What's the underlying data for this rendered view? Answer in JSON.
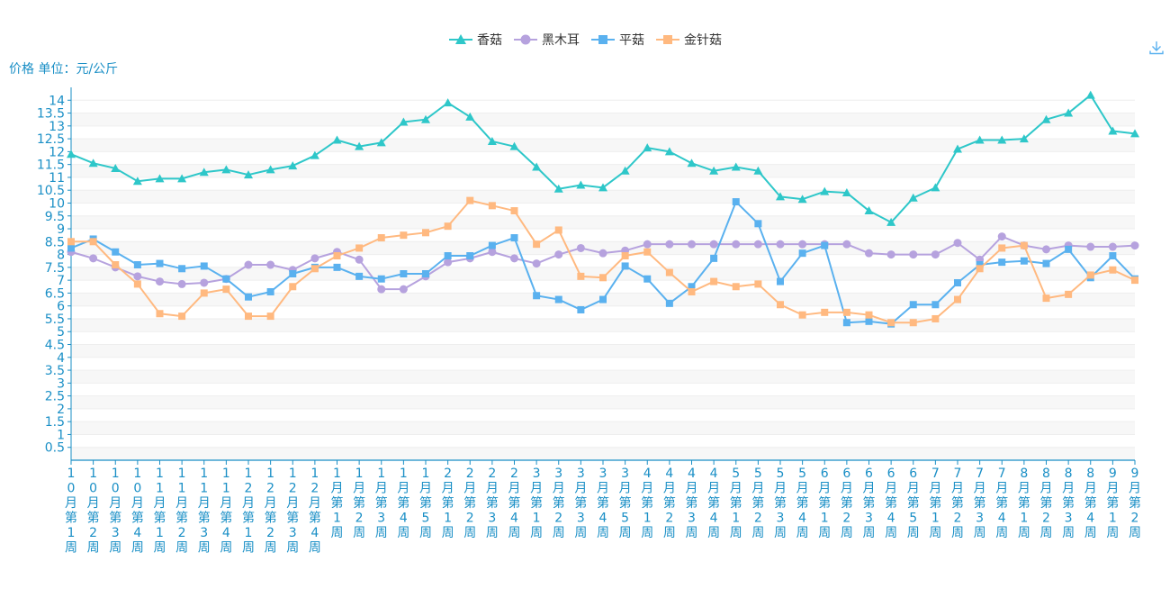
{
  "chart_data": {
    "type": "line",
    "ylabel": "价格 单位：元/公斤",
    "ylim": [
      0,
      14.5
    ],
    "yticks": [
      0.5,
      1,
      1.5,
      2,
      2.5,
      3,
      3.5,
      4,
      4.5,
      5,
      5.5,
      6,
      6.5,
      7,
      7.5,
      8,
      8.5,
      9,
      9.5,
      10,
      10.5,
      11,
      11.5,
      12,
      12.5,
      13,
      13.5,
      14
    ],
    "grid": true,
    "legend_position": "top-center",
    "categories": [
      "10月第1周",
      "10月第2周",
      "10月第3周",
      "10月第4周",
      "11月第1周",
      "11月第2周",
      "11月第3周",
      "11月第4周",
      "12月第1周",
      "12月第2周",
      "12月第3周",
      "12月第4周",
      "1月第1周",
      "1月第2周",
      "1月第3周",
      "1月第4周",
      "1月第5周",
      "2月第1周",
      "2月第2周",
      "2月第3周",
      "2月第4周",
      "3月第1周",
      "3月第2周",
      "3月第3周",
      "3月第4周",
      "3月第5周",
      "4月第1周",
      "4月第2周",
      "4月第3周",
      "4月第4周",
      "5月第1周",
      "5月第2周",
      "5月第3周",
      "5月第4周",
      "6月第1周",
      "6月第2周",
      "6月第3周",
      "6月第4周",
      "6月第5周",
      "7月第1周",
      "7月第2周",
      "7月第3周",
      "7月第4周",
      "8月第1周",
      "8月第2周",
      "8月第3周",
      "8月第4周",
      "9月第1周",
      "9月第2周"
    ],
    "series": [
      {
        "name": "香菇",
        "color": "#2ec7c9",
        "symbol": "triangle",
        "values": [
          11.9,
          11.55,
          11.35,
          10.85,
          10.95,
          10.95,
          11.2,
          11.3,
          11.1,
          11.3,
          11.45,
          11.85,
          12.45,
          12.2,
          12.35,
          13.15,
          13.25,
          13.9,
          13.35,
          12.4,
          12.2,
          11.4,
          10.55,
          10.7,
          10.6,
          11.25,
          12.15,
          12.0,
          11.55,
          11.25,
          11.4,
          11.25,
          10.25,
          10.15,
          10.45,
          10.4,
          9.7,
          9.25,
          10.2,
          10.6,
          12.1,
          12.45,
          12.45,
          12.5,
          13.25,
          13.5,
          14.2,
          12.8,
          12.7
        ]
      },
      {
        "name": "黑木耳",
        "color": "#b6a2de",
        "symbol": "circle",
        "values": [
          8.1,
          7.85,
          7.5,
          7.15,
          6.95,
          6.85,
          6.9,
          7.05,
          7.6,
          7.6,
          7.4,
          7.85,
          8.1,
          7.8,
          6.65,
          6.65,
          7.15,
          7.7,
          7.85,
          8.1,
          7.85,
          7.65,
          8.0,
          8.25,
          8.05,
          8.15,
          8.4,
          8.4,
          8.4,
          8.4,
          8.4,
          8.4,
          8.4,
          8.4,
          8.4,
          8.4,
          8.05,
          8.0,
          8.0,
          8.0,
          8.45,
          7.8,
          8.7,
          8.35,
          8.2,
          8.35,
          8.3,
          8.3,
          8.35
        ]
      },
      {
        "name": "平菇",
        "color": "#5ab1ef",
        "symbol": "rect",
        "values": [
          8.25,
          8.6,
          8.1,
          7.6,
          7.65,
          7.45,
          7.55,
          7.05,
          6.35,
          6.55,
          7.25,
          7.5,
          7.5,
          7.15,
          7.05,
          7.25,
          7.25,
          7.95,
          7.95,
          8.35,
          8.65,
          6.4,
          6.25,
          5.85,
          6.25,
          7.55,
          7.05,
          6.1,
          6.75,
          7.85,
          10.05,
          9.2,
          6.95,
          8.05,
          8.35,
          5.35,
          5.4,
          5.3,
          6.05,
          6.05,
          6.9,
          7.6,
          7.7,
          7.75,
          7.65,
          8.2,
          7.1,
          7.95,
          7.05
        ]
      },
      {
        "name": "金针菇",
        "color": "#ffb980",
        "symbol": "rect",
        "values": [
          8.5,
          8.5,
          7.6,
          6.85,
          5.7,
          5.6,
          6.5,
          6.65,
          5.6,
          5.6,
          6.75,
          7.45,
          7.95,
          8.25,
          8.65,
          8.75,
          8.85,
          9.1,
          10.1,
          9.9,
          9.7,
          8.4,
          8.95,
          7.15,
          7.1,
          7.95,
          8.1,
          7.3,
          6.55,
          6.95,
          6.75,
          6.85,
          6.05,
          5.65,
          5.75,
          5.75,
          5.65,
          5.35,
          5.35,
          5.5,
          6.25,
          7.45,
          8.25,
          8.35,
          6.3,
          6.45,
          7.2,
          7.4,
          7.0
        ]
      }
    ]
  },
  "toolbar": {
    "download_icon": "download-icon"
  }
}
